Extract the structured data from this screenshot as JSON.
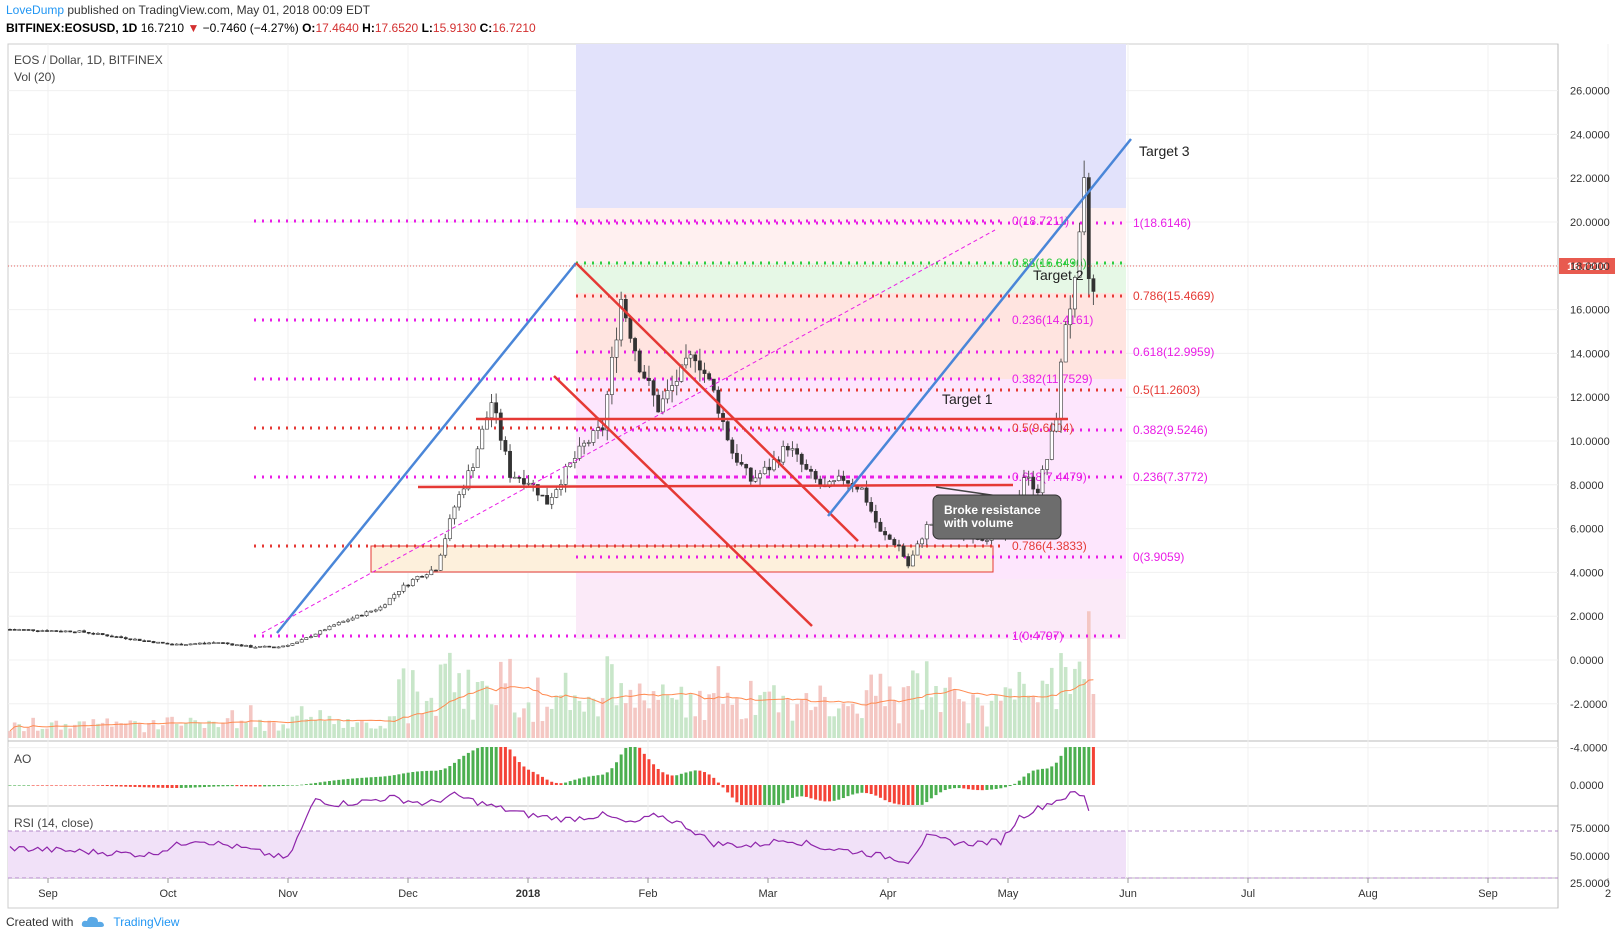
{
  "header": {
    "author": "LoveDump",
    "published": "published on TradingView.com, May 01, 2018 00:09 EDT"
  },
  "ticker": {
    "symbol": "BITFINEX:EOSUSD, 1D",
    "last": "16.7210",
    "change": "−0.7460 (−4.27%)",
    "o_label": "O:",
    "o": "17.4640",
    "h_label": "H:",
    "h": "17.6520",
    "l_label": "L:",
    "l": "15.9130",
    "c_label": "C:",
    "c": "16.7210"
  },
  "legend": {
    "title": "EOS / Dollar, 1D, BITFINEX",
    "vol": "Vol (20)",
    "ao": "AO",
    "rsi": "RSI (14, close)"
  },
  "price_badge": "16.7210",
  "annotation_box": {
    "line1": "Broke resistance",
    "line2": "with volume"
  },
  "footer": {
    "created": "Created with",
    "brand": "TradingView"
  },
  "colors": {
    "up": "#4caf50",
    "down": "#f44336",
    "trend_blue": "#4a86d8",
    "fib_magenta": "#e91ee6",
    "fib_red": "#e53935",
    "fib_green": "#2ecc40",
    "price_badge": "#e85a4f",
    "rsi_line": "#8e24aa"
  },
  "chart_data": {
    "type": "candlestick",
    "price_axis": {
      "ticks": [
        "26.0000",
        "24.0000",
        "22.0000",
        "20.0000",
        "18.0000",
        "16.0000",
        "14.0000",
        "12.0000",
        "10.0000",
        "8.0000",
        "6.0000",
        "4.0000",
        "2.0000",
        "0.0000",
        "-2.0000",
        "-4.0000"
      ],
      "min": -4,
      "max": 26
    },
    "ao_axis": {
      "ticks": [
        "0.0000"
      ]
    },
    "rsi_axis": {
      "ticks": [
        "75.0000",
        "50.0000",
        "25.0000"
      ]
    },
    "time_axis": {
      "labels": [
        "Sep",
        "Oct",
        "Nov",
        "Dec",
        "2018",
        "Feb",
        "Mar",
        "Apr",
        "May",
        "Jun",
        "Jul",
        "Aug",
        "Sep",
        "2"
      ]
    },
    "price_path": [
      [
        0,
        1.4
      ],
      [
        15,
        1.3
      ],
      [
        25,
        1.0
      ],
      [
        35,
        0.7
      ],
      [
        45,
        0.8
      ],
      [
        52,
        0.6
      ],
      [
        58,
        0.6
      ],
      [
        62,
        0.8
      ],
      [
        66,
        1.2
      ],
      [
        70,
        1.6
      ],
      [
        75,
        2.0
      ],
      [
        80,
        2.4
      ],
      [
        84,
        3.2
      ],
      [
        88,
        3.8
      ],
      [
        92,
        4.2
      ],
      [
        96,
        7.0
      ],
      [
        100,
        9.0
      ],
      [
        104,
        11.8
      ],
      [
        108,
        8.5
      ],
      [
        112,
        8.2
      ],
      [
        116,
        7.2
      ],
      [
        120,
        8.6
      ],
      [
        124,
        9.8
      ],
      [
        128,
        10.6
      ],
      [
        132,
        16.5
      ],
      [
        136,
        13.5
      ],
      [
        140,
        11.5
      ],
      [
        144,
        12.8
      ],
      [
        148,
        14.0
      ],
      [
        152,
        12.2
      ],
      [
        156,
        9.5
      ],
      [
        160,
        8.2
      ],
      [
        164,
        8.8
      ],
      [
        168,
        9.8
      ],
      [
        172,
        8.6
      ],
      [
        176,
        7.8
      ],
      [
        180,
        8.3
      ],
      [
        184,
        7.8
      ],
      [
        188,
        5.8
      ],
      [
        192,
        5.2
      ],
      [
        194,
        4.3
      ],
      [
        198,
        6.1
      ],
      [
        202,
        6.6
      ],
      [
        206,
        5.8
      ],
      [
        210,
        5.6
      ],
      [
        214,
        5.7
      ],
      [
        216,
        6.1
      ],
      [
        219,
        8.4
      ],
      [
        222,
        7.8
      ],
      [
        224,
        9.2
      ],
      [
        226,
        11.2
      ],
      [
        228,
        15.5
      ],
      [
        230,
        17.0
      ],
      [
        231,
        19.0
      ],
      [
        232,
        21.5
      ],
      [
        233,
        17.4
      ],
      [
        234,
        16.7
      ]
    ],
    "target_labels": [
      "Target 1",
      "Target 2",
      "Target 3"
    ],
    "fib_left": [
      {
        "label": "0(18.7211)"
      },
      {
        "label": "0.88(16.8496)"
      },
      {
        "label": "0.236(14.4161)"
      },
      {
        "label": "0.382(11.7529)"
      },
      {
        "label": "0.5(9.6004)"
      },
      {
        "label": "0.618(7.4479)"
      },
      {
        "label": "0.786(4.3833)"
      }
    ],
    "fib_right": [
      {
        "label": "1(18.6146)"
      },
      {
        "label": "0.786(15.4669)"
      },
      {
        "label": "0.618(12.9959)"
      },
      {
        "label": "0.5(11.2603)"
      },
      {
        "label": "0.382(9.5246)"
      },
      {
        "label": "0.236(7.3772)"
      },
      {
        "label": "0(3.9059)"
      },
      {
        "label": "1(0.4797)"
      }
    ],
    "rsi_path": [
      [
        0,
        40
      ],
      [
        10,
        38
      ],
      [
        20,
        36
      ],
      [
        30,
        34
      ],
      [
        40,
        48
      ],
      [
        50,
        40
      ],
      [
        60,
        30
      ],
      [
        66,
        85
      ],
      [
        70,
        80
      ],
      [
        76,
        82
      ],
      [
        82,
        86
      ],
      [
        90,
        80
      ],
      [
        96,
        88
      ],
      [
        104,
        78
      ],
      [
        112,
        70
      ],
      [
        120,
        66
      ],
      [
        128,
        70
      ],
      [
        134,
        62
      ],
      [
        140,
        70
      ],
      [
        146,
        60
      ],
      [
        152,
        44
      ],
      [
        160,
        42
      ],
      [
        168,
        48
      ],
      [
        176,
        40
      ],
      [
        184,
        36
      ],
      [
        192,
        30
      ],
      [
        194,
        28
      ],
      [
        198,
        50
      ],
      [
        206,
        44
      ],
      [
        214,
        46
      ],
      [
        218,
        68
      ],
      [
        224,
        80
      ],
      [
        230,
        90
      ],
      [
        232,
        86
      ],
      [
        234,
        64
      ]
    ]
  }
}
